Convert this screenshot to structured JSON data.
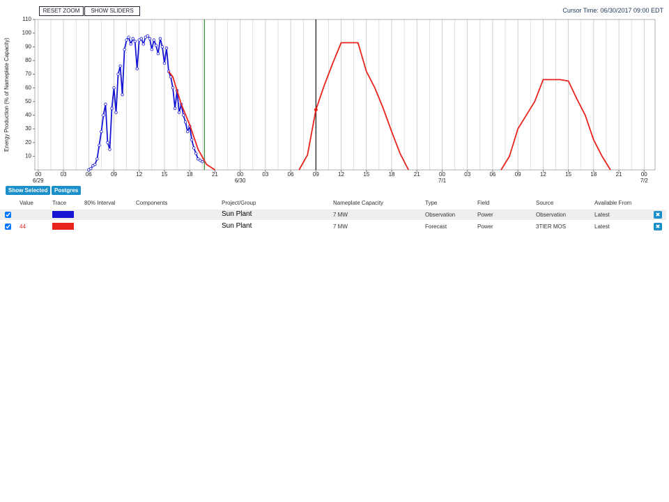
{
  "toolbar": {
    "reset_zoom": "RESET ZOOM",
    "show_sliders": "SHOW SLIDERS",
    "cursor_time": "Cursor Time: 06/30/2017 09:00 EDT"
  },
  "chart_data": {
    "type": "line",
    "y_label": "Energy Production (% of Nameplate Capacity)",
    "xlim": [
      -0.4,
      73.3
    ],
    "ylim": [
      0,
      110
    ],
    "yticks": [
      10,
      20,
      30,
      40,
      50,
      60,
      70,
      80,
      90,
      100,
      110
    ],
    "xticks": [
      {
        "value": 0,
        "label": "00"
      },
      {
        "value": 3,
        "label": "03"
      },
      {
        "value": 6,
        "label": "06"
      },
      {
        "value": 9,
        "label": "09"
      },
      {
        "value": 12,
        "label": "12"
      },
      {
        "value": 15,
        "label": "15"
      },
      {
        "value": 18,
        "label": "18"
      },
      {
        "value": 21,
        "label": "21"
      },
      {
        "value": 24,
        "label": "00"
      },
      {
        "value": 27,
        "label": "03"
      },
      {
        "value": 30,
        "label": "06"
      },
      {
        "value": 33,
        "label": "09"
      },
      {
        "value": 36,
        "label": "12"
      },
      {
        "value": 39,
        "label": "15"
      },
      {
        "value": 42,
        "label": "18"
      },
      {
        "value": 45,
        "label": "21"
      },
      {
        "value": 48,
        "label": "00"
      },
      {
        "value": 51,
        "label": "03"
      },
      {
        "value": 54,
        "label": "06"
      },
      {
        "value": 57,
        "label": "09"
      },
      {
        "value": 60,
        "label": "12"
      },
      {
        "value": 63,
        "label": "15"
      },
      {
        "value": 66,
        "label": "18"
      },
      {
        "value": 69,
        "label": "21"
      },
      {
        "value": 72,
        "label": "00"
      }
    ],
    "xdates": [
      {
        "value": 0,
        "label": "6/29"
      },
      {
        "value": 24,
        "label": "6/30"
      },
      {
        "value": 48,
        "label": "7/1"
      },
      {
        "value": 72,
        "label": "7/2"
      }
    ],
    "xminor": [
      1.5,
      4.5,
      7.5,
      10.5,
      13.5,
      16.5,
      19.5,
      22.5,
      25.5,
      28.5,
      31.5,
      34.5,
      37.5,
      40.5,
      43.5,
      46.5,
      49.5,
      52.5,
      55.5,
      58.5,
      61.5,
      64.5,
      67.5,
      70.5
    ],
    "grid": "x",
    "now_line": {
      "x": 19.75,
      "color": "#2e8b2e"
    },
    "cursor_line": {
      "x": 33,
      "color": "#111"
    },
    "series": [
      {
        "name": "Observation",
        "color": "#1515d4",
        "markers": true,
        "x": [
          6,
          6.25,
          6.5,
          6.75,
          7,
          7.25,
          7.5,
          7.75,
          8,
          8.25,
          8.5,
          8.75,
          9,
          9.25,
          9.5,
          9.75,
          10,
          10.25,
          10.5,
          10.75,
          11,
          11.25,
          11.5,
          11.75,
          12,
          12.25,
          12.5,
          12.75,
          13,
          13.25,
          13.5,
          13.75,
          14,
          14.25,
          14.5,
          14.75,
          15,
          15.25,
          15.5,
          15.75,
          16,
          16.25,
          16.5,
          16.75,
          17,
          17.25,
          17.5,
          17.75,
          18,
          18.25,
          18.5,
          18.75,
          19,
          19.25,
          19.5
        ],
        "values": [
          0,
          1,
          3,
          4,
          8,
          18,
          28,
          40,
          48,
          20,
          15,
          45,
          60,
          42,
          70,
          76,
          55,
          88,
          95,
          97,
          92,
          96,
          94,
          74,
          95,
          96,
          92,
          97,
          98,
          96,
          88,
          95,
          91,
          85,
          96,
          90,
          78,
          89,
          72,
          68,
          60,
          45,
          58,
          42,
          48,
          40,
          35,
          28,
          32,
          22,
          16,
          12,
          8,
          7,
          6
        ]
      },
      {
        "name": "Forecast",
        "color": "#e8231c",
        "markers": false,
        "x": [
          15.5,
          16,
          17,
          18,
          19,
          20,
          21,
          26,
          31,
          32,
          33,
          34,
          35,
          36,
          37,
          38,
          39,
          40,
          41,
          42,
          43,
          44,
          50,
          55,
          56,
          57,
          58,
          59,
          60,
          61,
          62,
          63,
          64,
          65,
          66,
          67,
          68
        ],
        "values": [
          72,
          68,
          48,
          33,
          15,
          4,
          0,
          null,
          0,
          11,
          44,
          62,
          78,
          93,
          93,
          93,
          72,
          60,
          45,
          28,
          12,
          0,
          null,
          0,
          10,
          30,
          40,
          50,
          66,
          66,
          66,
          65,
          52,
          40,
          22,
          10,
          0
        ]
      }
    ],
    "cursor_point": {
      "series": 1,
      "index": 10
    }
  },
  "table": {
    "buttons": [
      "Show Selected",
      "Postgres"
    ],
    "headers": [
      "Value",
      "Trace",
      "80% Interval",
      "Components",
      "Project/Group",
      "Nameplate Capacity",
      "Type",
      "Field",
      "Source",
      "Available From"
    ],
    "rows": [
      {
        "project": "Sun Plant",
        "capacity": "7 MW",
        "type": "Observation",
        "field": "Power",
        "source": "Observation",
        "available": "Latest"
      },
      {
        "value": "44",
        "project": "Sun Plant",
        "capacity": "7 MW",
        "type": "Forecast",
        "field": "Power",
        "source": "3TIER MOS",
        "available": "Latest"
      }
    ]
  }
}
